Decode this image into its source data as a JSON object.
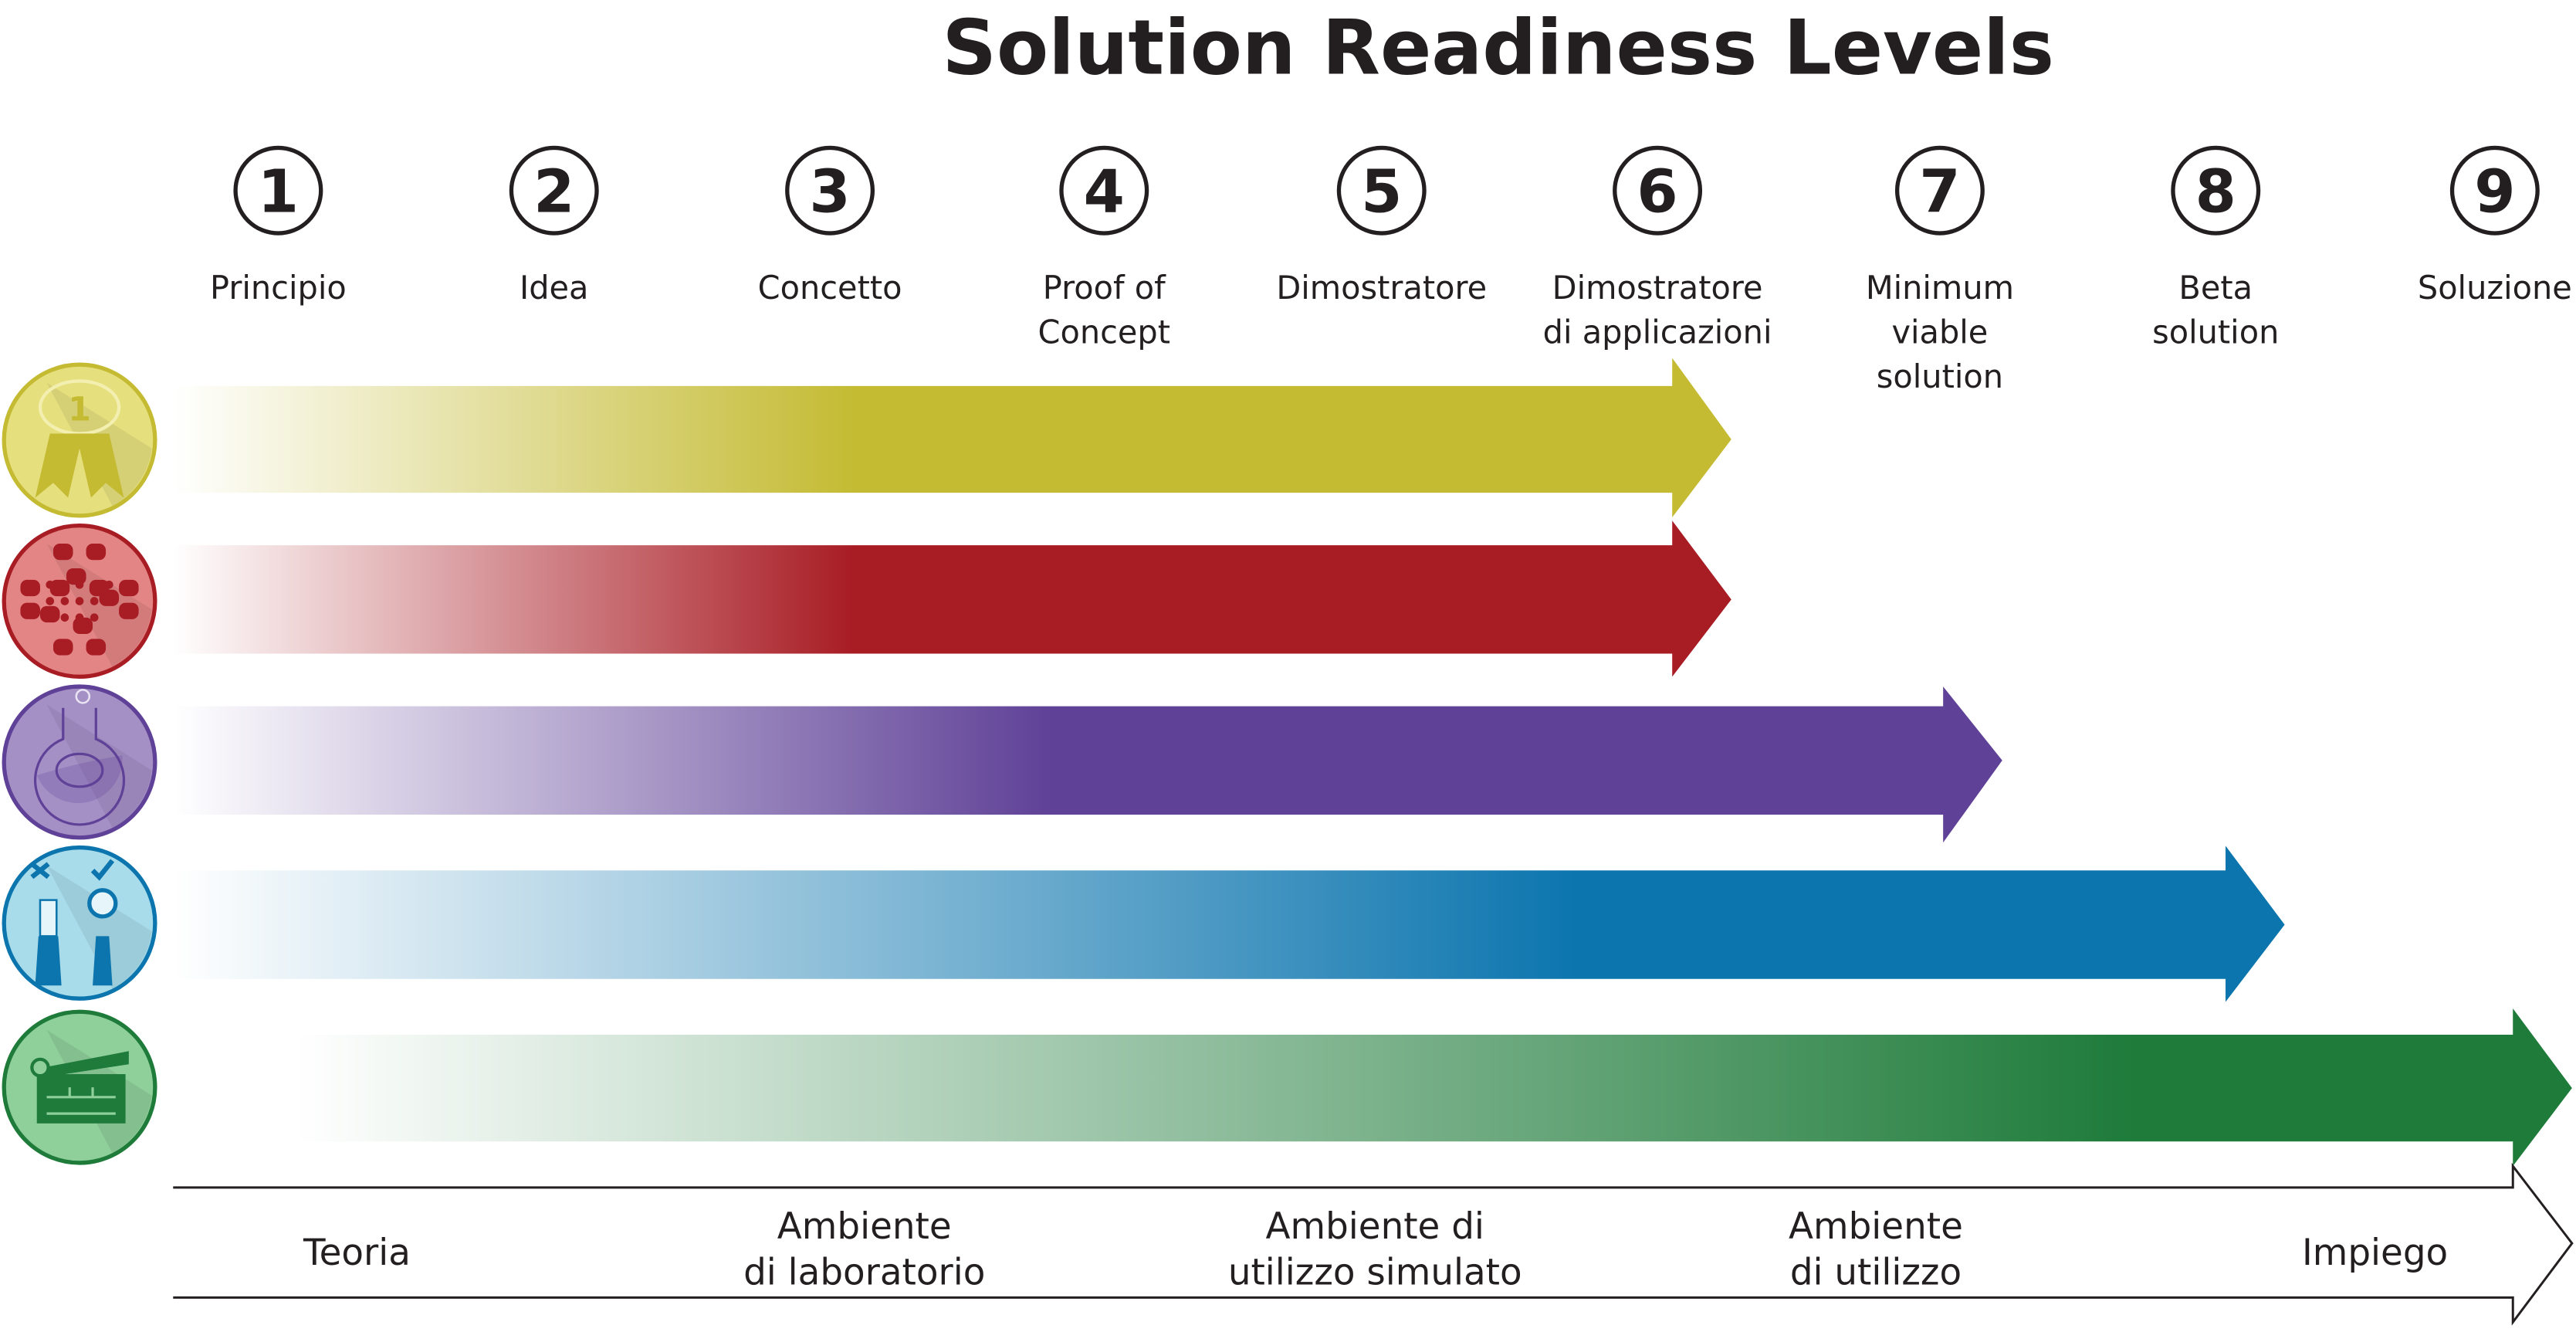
{
  "title": "Solution Readiness Levels",
  "levels": [
    {
      "number": "1",
      "label": [
        "Principio"
      ]
    },
    {
      "number": "2",
      "label": [
        "Idea"
      ]
    },
    {
      "number": "3",
      "label": [
        "Concetto"
      ]
    },
    {
      "number": "4",
      "label": [
        "Proof of",
        "Concept"
      ]
    },
    {
      "number": "5",
      "label": [
        "Dimostratore"
      ]
    },
    {
      "number": "6",
      "label": [
        "Dimostratore",
        "di applicazioni"
      ]
    },
    {
      "number": "7",
      "label": [
        "Minimum",
        "viable",
        "solution"
      ]
    },
    {
      "number": "8",
      "label": [
        "Beta",
        "solution"
      ]
    },
    {
      "number": "9",
      "label": [
        "Soluzione"
      ]
    }
  ],
  "tracks": [
    {
      "icon": "award-brain-icon",
      "color": "#c4bb33",
      "icon_fill": "#e6df7e",
      "reaches_level": 6
    },
    {
      "icon": "puzzle-pattern-icon",
      "color": "#a81c24",
      "icon_fill": "#e38585",
      "reaches_level": 6
    },
    {
      "icon": "flask-brain-icon",
      "color": "#5f4197",
      "icon_fill": "#a590c6",
      "reaches_level": 7
    },
    {
      "icon": "tools-check-icon",
      "color": "#0c75ae",
      "icon_fill": "#a8dcea",
      "reaches_level": 8
    },
    {
      "icon": "clapperboard-icon",
      "color": "#1e7b3a",
      "icon_fill": "#8fcf9a",
      "reaches_level": 9
    }
  ],
  "environments": [
    {
      "label": [
        "Teoria"
      ]
    },
    {
      "label": [
        "Ambiente",
        "di laboratorio"
      ]
    },
    {
      "label": [
        "Ambiente di",
        "utilizzo simulato"
      ]
    },
    {
      "label": [
        "Ambiente",
        "di utilizzo"
      ]
    },
    {
      "label": [
        "Impiego"
      ]
    }
  ]
}
